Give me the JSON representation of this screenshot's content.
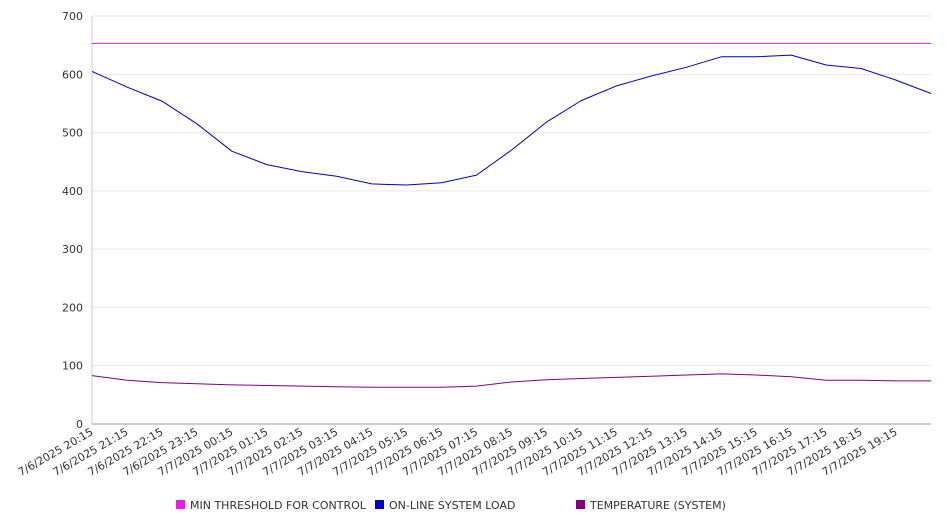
{
  "chart_data": {
    "type": "line",
    "title": "",
    "xlabel": "",
    "ylabel": "",
    "ylim": [
      0,
      700
    ],
    "y_ticks": [
      0,
      100,
      200,
      300,
      400,
      500,
      600,
      700
    ],
    "x_tick_labels": [
      "7/6/2025 20:15",
      "7/6/2025 21:15",
      "7/6/2025 22:15",
      "7/6/2025 23:15",
      "7/7/2025 00:15",
      "7/7/2025 01:15",
      "7/7/2025 02:15",
      "7/7/2025 03:15",
      "7/7/2025 04:15",
      "7/7/2025 05:15",
      "7/7/2025 06:15",
      "7/7/2025 07:15",
      "7/7/2025 08:15",
      "7/7/2025 09:15",
      "7/7/2025 10:15",
      "7/7/2025 11:15",
      "7/7/2025 12:15",
      "7/7/2025 13:15",
      "7/7/2025 14:15",
      "7/7/2025 15:15",
      "7/7/2025 16:15",
      "7/7/2025 17:15",
      "7/7/2025 18:15",
      "7/7/2025 19:15"
    ],
    "grid": "horizontal",
    "legend_position": "bottom",
    "series": [
      {
        "name": "MIN THRESHOLD FOR CONTROL",
        "color": "#e61ee6",
        "values": [
          653,
          653,
          653,
          653,
          653,
          653,
          653,
          653,
          653,
          653,
          653,
          653,
          653,
          653,
          653,
          653,
          653,
          653,
          653,
          653,
          653,
          653,
          653,
          653,
          653
        ]
      },
      {
        "name": "ON-LINE SYSTEM LOAD",
        "color": "#0000cc",
        "values": [
          605,
          578,
          554,
          515,
          468,
          445,
          433,
          425,
          412,
          410,
          414,
          427,
          470,
          518,
          555,
          580,
          597,
          612,
          630,
          630,
          633,
          616,
          610,
          590,
          567
        ]
      },
      {
        "name": "TEMPERATURE (SYSTEM)",
        "color": "#800080",
        "values": [
          83,
          75,
          71,
          69,
          67,
          66,
          65,
          64,
          63,
          63,
          63,
          65,
          72,
          76,
          78,
          80,
          82,
          84,
          86,
          84,
          81,
          75,
          75,
          74,
          74
        ]
      }
    ]
  }
}
